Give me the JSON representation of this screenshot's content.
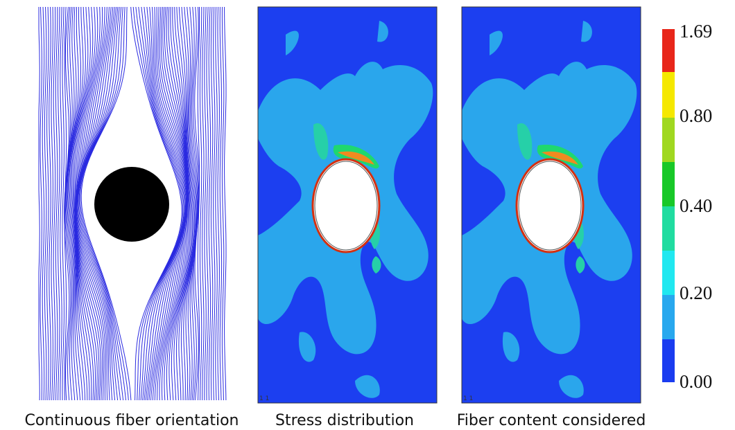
{
  "panels": [
    {
      "caption": "Continuous fiber orientation"
    },
    {
      "caption": "Stress distribution",
      "corner_label": "1 1"
    },
    {
      "caption": "Fiber content considered",
      "corner_label": "1 1"
    }
  ],
  "colorbar": {
    "labels": [
      "1.69",
      "0.80",
      "0.40",
      "0.20",
      "0.00"
    ]
  }
}
